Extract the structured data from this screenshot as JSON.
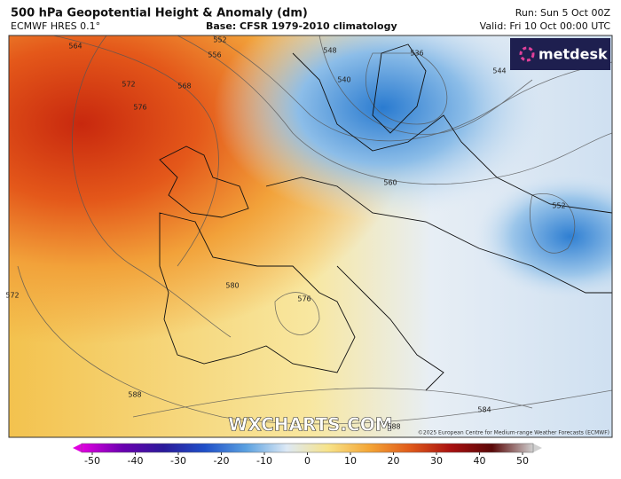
{
  "header": {
    "title": "500 hPa Geopotential Height & Anomaly (dm)",
    "model": "ECMWF HRES 0.1°",
    "base": "Base: CFSR 1979-2010 climatology",
    "run": "Run: Sun 5 Oct 00Z",
    "valid": "Valid: Fri 10 Oct 00:00 UTC"
  },
  "logo": "metdesk",
  "watermark": "WXCHARTS.COM",
  "credit": "©2025 European Centre for Medium-range Weather Forecasts (ECMWF)",
  "contour_labels": [
    564,
    572,
    568,
    576,
    556,
    552,
    548,
    540,
    536,
    544,
    560,
    552,
    580,
    576,
    588,
    584,
    588,
    572
  ],
  "colorbar": {
    "ticks": [
      -50,
      -40,
      -30,
      -20,
      -10,
      0,
      10,
      20,
      30,
      40,
      50
    ],
    "colors": [
      "#e000e0",
      "#6a00b0",
      "#2a1a9a",
      "#1f4fc8",
      "#5aa0e0",
      "#dde9f5",
      "#f7e38a",
      "#f4a636",
      "#e05a1a",
      "#a81010",
      "#5a0808",
      "#d0d0d0"
    ]
  }
}
